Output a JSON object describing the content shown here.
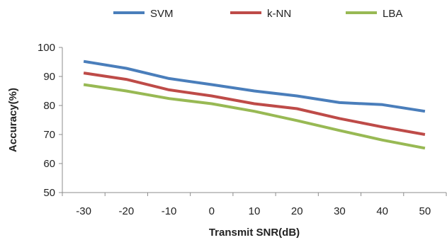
{
  "chart_data": {
    "type": "line",
    "title": "",
    "xlabel": "Transmit SNR(dB)",
    "ylabel": "Accuracy(%)",
    "x": [
      -30,
      -20,
      -10,
      0,
      10,
      20,
      30,
      40,
      50
    ],
    "x_tick_labels": [
      "-30",
      "-20",
      "-10",
      "0",
      "10",
      "20",
      "30",
      "40",
      "50"
    ],
    "ylim": [
      50,
      100
    ],
    "y_ticks": [
      50,
      60,
      70,
      80,
      90,
      100
    ],
    "y_tick_labels": [
      "50",
      "60",
      "70",
      "80",
      "90",
      "100"
    ],
    "grid": false,
    "legend_position": "top",
    "series": [
      {
        "name": "SVM",
        "color": "#4a7ebb",
        "values": [
          95.2,
          92.8,
          89.3,
          87.2,
          85.0,
          83.3,
          81.0,
          80.3,
          78.0
        ]
      },
      {
        "name": "k-NN",
        "color": "#be4b48",
        "values": [
          91.2,
          89.0,
          85.4,
          83.3,
          80.6,
          78.9,
          75.5,
          72.6,
          70.0
        ]
      },
      {
        "name": "LBA",
        "color": "#98b954",
        "values": [
          87.2,
          85.0,
          82.4,
          80.6,
          78.0,
          74.8,
          71.4,
          68.1,
          65.3
        ]
      }
    ]
  }
}
